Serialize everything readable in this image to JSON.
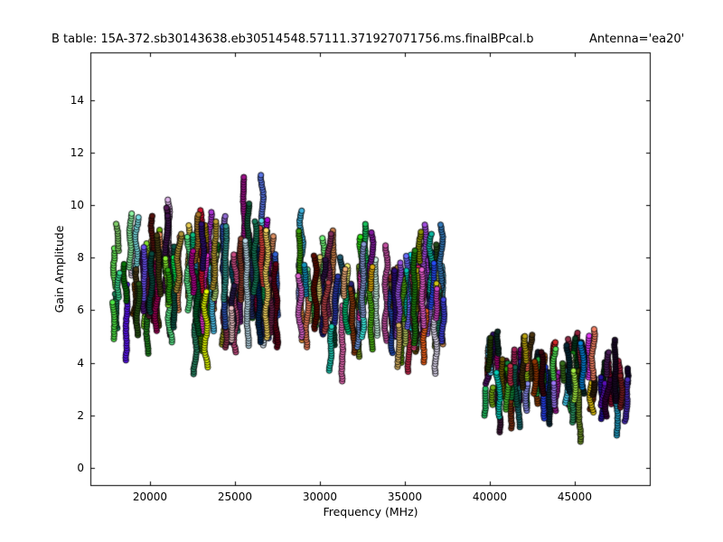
{
  "figure": {
    "title_left": "B table: 15A-372.sb30143638.eb30514548.57111.371927071756.ms.finalBPcal.b",
    "title_right": "Antenna='ea20'",
    "xlabel": "Frequency (MHz)",
    "ylabel": "Gain Amplitude",
    "background_color": "#ffffff",
    "axis_color": "#000000"
  },
  "chart_data": {
    "type": "scatter",
    "title": "B table: 15A-372.sb30143638.eb30514548.57111.371927071756.ms.finalBPcal.b    Antenna='ea20'",
    "xlabel": "Frequency (MHz)",
    "ylabel": "Gain Amplitude",
    "xlim": [
      16490,
      49470
    ],
    "ylim": [
      -0.69,
      15.82
    ],
    "xticks": [
      20000,
      25000,
      30000,
      35000,
      40000,
      45000
    ],
    "yticks": [
      0,
      2,
      4,
      6,
      8,
      10,
      12,
      14
    ],
    "grid": false,
    "legend": "none",
    "tick_direction": "in",
    "marker": {
      "shape": "circle",
      "radius_px": 3.1,
      "edge_color": "#000000",
      "stack_spacing_px": 2.7
    },
    "description": "Bandpass gain-amplitude solutions vs frequency for antenna ea20; each near-vertical strand of stacked colored circles is one spectral-window solution. Three receiver-band clusters.",
    "clusters": [
      {
        "name": "cluster-1",
        "freq_range_mhz": [
          17800,
          27650
        ],
        "amp_range": [
          3.2,
          11.5
        ],
        "amp_center": 7.3,
        "amp_spread": 1.6,
        "n_strands": 115,
        "strand_amp_span": [
          0.8,
          3.2
        ],
        "lightness": [
          0.16,
          0.72
        ],
        "bright_frac": 0.1,
        "pale_frac": 0.07
      },
      {
        "name": "cluster-2",
        "freq_range_mhz": [
          28800,
          37300
        ],
        "amp_range": [
          3.3,
          10.0
        ],
        "amp_center": 6.6,
        "amp_spread": 1.45,
        "n_strands": 100,
        "strand_amp_span": [
          0.8,
          3.0
        ],
        "lightness": [
          0.16,
          0.7
        ],
        "bright_frac": 0.12,
        "pale_frac": 0.07
      },
      {
        "name": "cluster-3",
        "freq_range_mhz": [
          39600,
          48300
        ],
        "amp_range": [
          1.0,
          5.85
        ],
        "amp_center": 3.3,
        "amp_spread": 1.05,
        "n_strands": 92,
        "strand_amp_span": [
          0.6,
          2.0
        ],
        "lightness": [
          0.08,
          0.48
        ],
        "bright_frac": 0.13,
        "pale_frac": 0.02
      }
    ],
    "render_seed": 20150372
  }
}
